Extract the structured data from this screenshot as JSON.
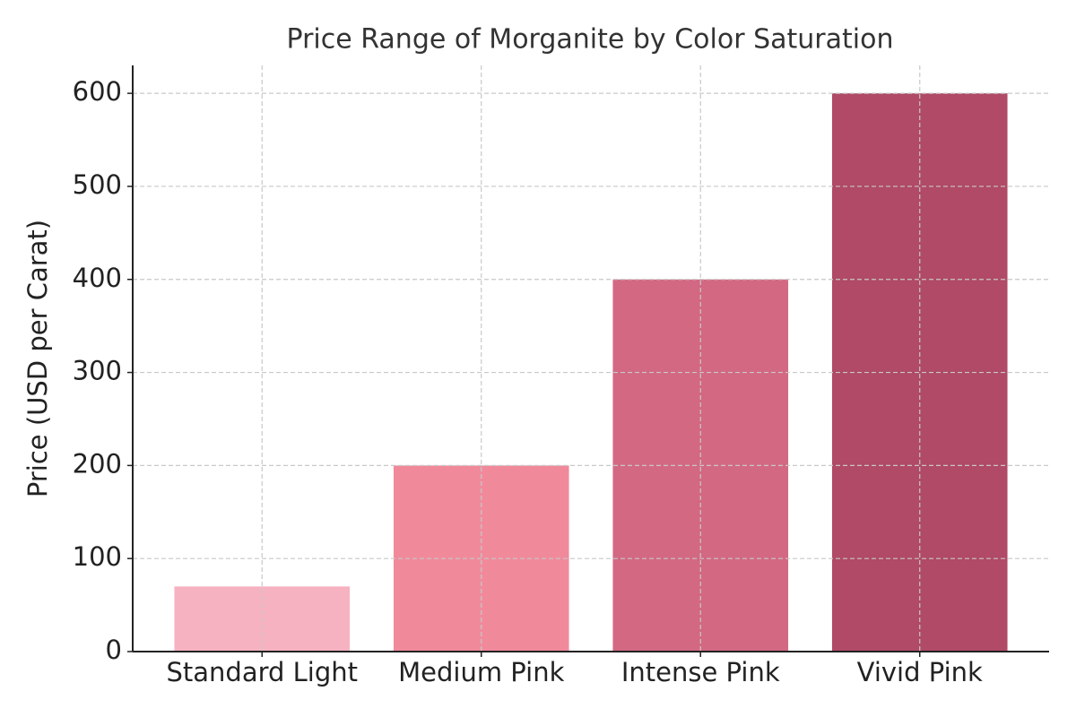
{
  "chart_data": {
    "type": "bar",
    "title": "Price Range of Morganite by Color Saturation",
    "y_label": "Price (USD per Carat)",
    "categories": [
      "Standard Light",
      "Medium Pink",
      "Intense Pink",
      "Vivid Pink"
    ],
    "values": [
      70,
      200,
      400,
      600
    ],
    "colors": [
      "#f7b2c1",
      "#f08a9b",
      "#d36882",
      "#b04a66"
    ],
    "ylim": [
      0,
      630
    ],
    "yticks": [
      0,
      100,
      200,
      300,
      400,
      500,
      600
    ],
    "grid": true
  }
}
